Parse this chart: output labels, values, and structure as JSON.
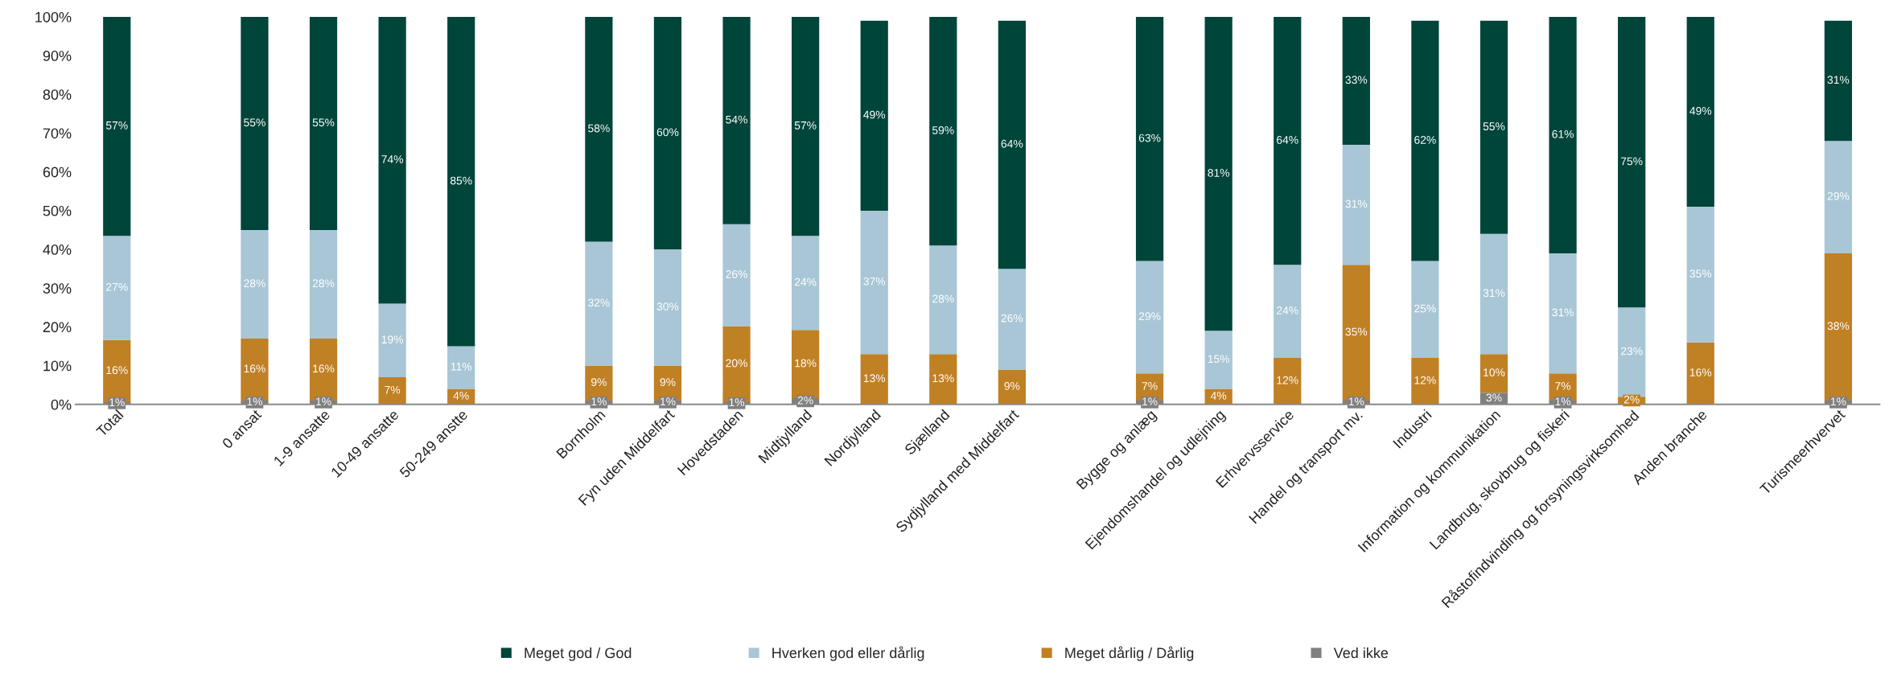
{
  "chart_data": {
    "type": "bar",
    "stacked": true,
    "legend": "bottom",
    "grid": false,
    "categories": [
      "Total",
      null,
      "0 ansat",
      "1-9 ansatte",
      "10-49 ansatte",
      "50-249 anstte",
      null,
      "Bornholm",
      "Fyn uden Middelfart",
      "Hovedstaden",
      "Midtjylland",
      "Nordjylland",
      "Sjælland",
      "Sydjylland med Middelfart",
      null,
      "Bygge og anlæg",
      "Ejendomshandel og udlejning",
      "Erhvervsservice",
      "Handel og transport mv.",
      "Industri",
      "Information og kommunikation",
      "Landbrug, skovbrug og fiskeri",
      "Råstofindvinding og forsyningsvirksomhed",
      "Anden branche",
      null,
      "Turismeerhvervet"
    ],
    "ylim": [
      0,
      100
    ],
    "yticks": [
      {
        "value": 0,
        "label": "0%"
      },
      {
        "value": 10,
        "label": "10%"
      },
      {
        "value": 20,
        "label": "20%"
      },
      {
        "value": 30,
        "label": "30%"
      },
      {
        "value": 40,
        "label": "40%"
      },
      {
        "value": 50,
        "label": "50%"
      },
      {
        "value": 60,
        "label": "60%"
      },
      {
        "value": 70,
        "label": "70%"
      },
      {
        "value": 80,
        "label": "80%"
      },
      {
        "value": 90,
        "label": "90%"
      },
      {
        "value": 100,
        "label": "100%"
      }
    ],
    "series": [
      {
        "name": "Ved ikke",
        "color": "#808080",
        "values": [
          0.6,
          null,
          1,
          1,
          0,
          0,
          null,
          1,
          1,
          0.6,
          1.6,
          0,
          0,
          0,
          null,
          1,
          0,
          0,
          1,
          0,
          3,
          1,
          0,
          0,
          null,
          1
        ],
        "value_labels": [
          "1%",
          null,
          "1%",
          "1%",
          null,
          null,
          null,
          "1%",
          "1%",
          "1%",
          "2%",
          null,
          null,
          null,
          null,
          "1%",
          null,
          null,
          "1%",
          null,
          "3%",
          "1%",
          null,
          null,
          null,
          "1%"
        ]
      },
      {
        "name": "Meget dårlig / Dårlig",
        "color": "#c08024",
        "values": [
          16,
          null,
          16,
          16,
          7,
          4,
          null,
          9,
          9,
          19.6,
          17.6,
          13,
          13,
          9,
          null,
          7,
          4,
          12,
          35,
          12,
          10,
          7,
          2,
          16,
          null,
          38
        ],
        "value_labels": [
          "16%",
          null,
          "16%",
          "16%",
          "7%",
          "4%",
          null,
          "9%",
          "9%",
          "20%",
          "18%",
          "13%",
          "13%",
          "9%",
          null,
          "7%",
          "4%",
          "12%",
          "35%",
          "12%",
          "10%",
          "7%",
          "2%",
          "16%",
          null,
          "38%"
        ]
      },
      {
        "name": "Hverken god eller dårlig",
        "color": "#a8c6d6",
        "values": [
          26.9,
          null,
          28,
          28,
          19,
          11,
          null,
          32,
          30,
          26.3,
          24.3,
          37,
          28,
          26,
          null,
          29,
          15,
          24,
          31,
          25,
          31,
          31,
          23,
          35,
          null,
          29
        ],
        "value_labels": [
          "27%",
          null,
          "28%",
          "28%",
          "19%",
          "11%",
          null,
          "32%",
          "30%",
          "26%",
          "24%",
          "37%",
          "28%",
          "26%",
          null,
          "29%",
          "15%",
          "24%",
          "31%",
          "25%",
          "31%",
          "31%",
          "23%",
          "35%",
          null,
          "29%"
        ]
      },
      {
        "name": "Meget god / God",
        "color": "#00453a",
        "values": [
          56.5,
          null,
          55,
          55,
          74,
          85,
          null,
          58,
          60,
          53.5,
          56.5,
          49,
          59,
          64,
          null,
          63,
          81,
          64,
          33,
          62,
          55,
          61,
          75,
          49,
          null,
          31
        ],
        "value_labels": [
          "57%",
          null,
          "55%",
          "55%",
          "74%",
          "85%",
          null,
          "58%",
          "60%",
          "54%",
          "57%",
          "49%",
          "59%",
          "64%",
          null,
          "63%",
          "81%",
          "64%",
          "33%",
          "62%",
          "55%",
          "61%",
          "75%",
          "49%",
          null,
          "31%"
        ]
      }
    ]
  }
}
